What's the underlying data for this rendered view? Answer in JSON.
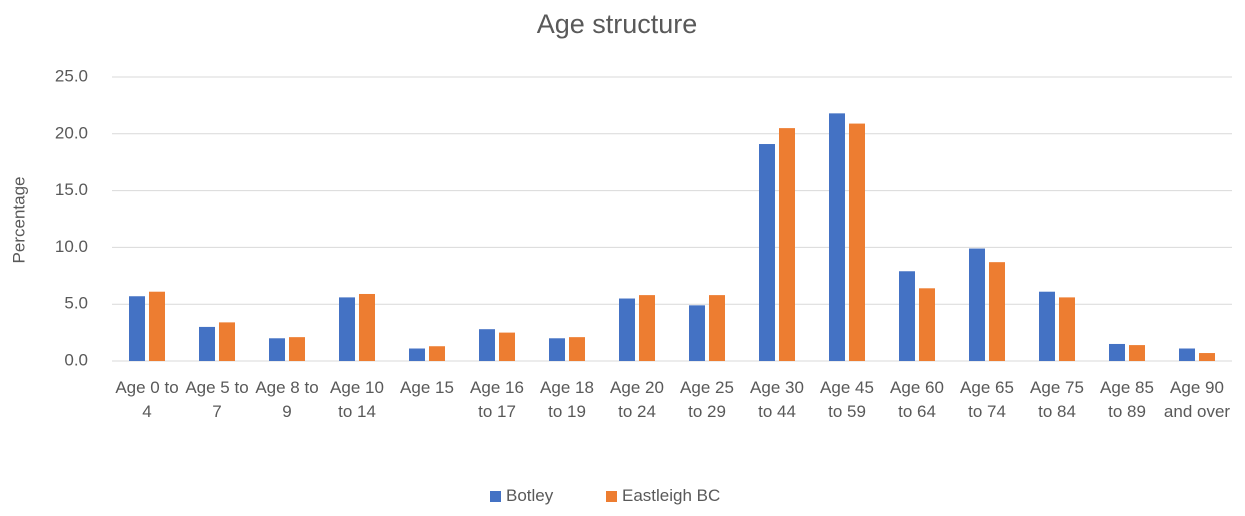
{
  "chart_data": {
    "type": "bar",
    "title": "Age structure",
    "y_label": "Percentage",
    "categories": [
      "Age 0 to 4",
      "Age 5 to 7",
      "Age 8 to 9",
      "Age 10 to 14",
      "Age 15",
      "Age 16 to 17",
      "Age 18 to 19",
      "Age 20 to 24",
      "Age 25 to 29",
      "Age 30 to 44",
      "Age 45 to 59",
      "Age 60 to 64",
      "Age 65 to 74",
      "Age 75 to 84",
      "Age 85 to 89",
      "Age 90 and over"
    ],
    "series": [
      {
        "name": "Botley",
        "color": "#4472c4",
        "values": [
          5.7,
          3.0,
          2.0,
          5.6,
          1.1,
          2.8,
          2.0,
          5.5,
          4.9,
          19.1,
          21.8,
          7.9,
          9.9,
          6.1,
          1.5,
          1.1
        ]
      },
      {
        "name": "Eastleigh BC",
        "color": "#ed7d31",
        "values": [
          6.1,
          3.4,
          2.1,
          5.9,
          1.3,
          2.5,
          2.1,
          5.8,
          5.8,
          20.5,
          20.9,
          6.4,
          8.7,
          5.6,
          1.4,
          0.7
        ]
      }
    ],
    "ylim": [
      0,
      25
    ],
    "yticks": [
      {
        "value": 0,
        "label": "0.0"
      },
      {
        "value": 5,
        "label": "5.0"
      },
      {
        "value": 10,
        "label": "10.0"
      },
      {
        "value": 15,
        "label": "15.0"
      },
      {
        "value": 20,
        "label": "20.0"
      },
      {
        "value": 25,
        "label": "25.0"
      }
    ],
    "grid": true,
    "legend": "bottom"
  }
}
